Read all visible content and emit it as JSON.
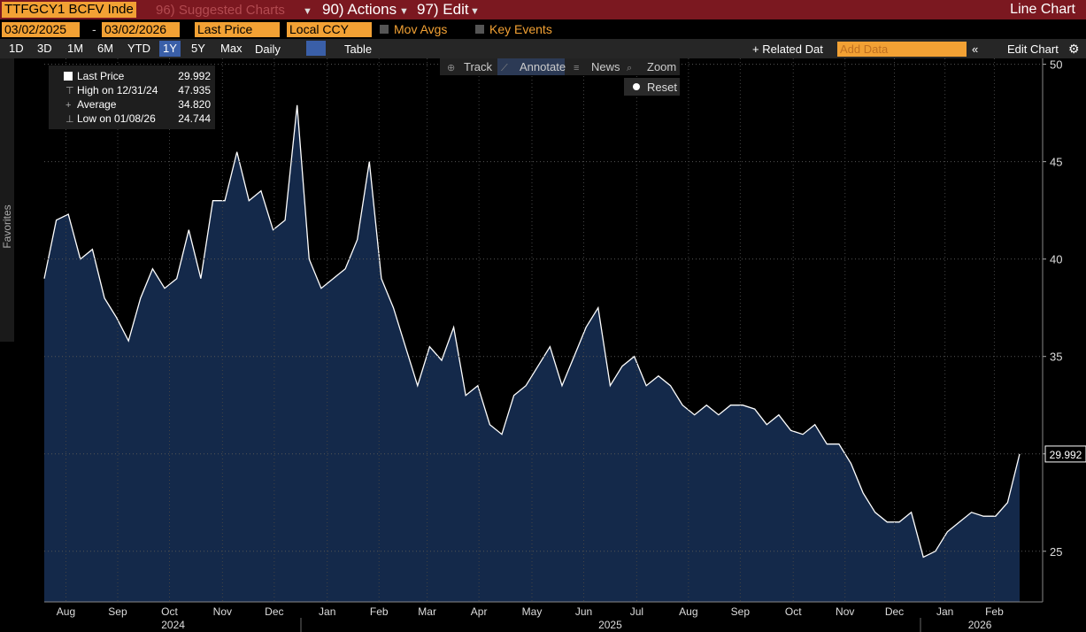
{
  "header": {
    "ticker": "TTFGCY1 BCFV Inde",
    "menus": [
      "96) Suggested Charts",
      "90) Actions",
      "97) Edit"
    ],
    "view": "Line Chart"
  },
  "controls": {
    "start_date": "03/02/2025",
    "end_date": "03/02/2026",
    "field": "Last Price",
    "currency": "Local CCY",
    "options": [
      "Mov Avgs",
      "Key Events"
    ]
  },
  "periods": [
    "1D",
    "3D",
    "1M",
    "6M",
    "YTD",
    "1Y",
    "5Y",
    "Max"
  ],
  "selected_period": 5,
  "frequency": "Daily",
  "table": "Table",
  "related": "+ Related Dat",
  "add_data": "Add Data",
  "edit_chart": "Edit Chart",
  "chart_tools": [
    "Track",
    "Annotate",
    "News",
    "Zoom"
  ],
  "reset": "Reset",
  "favorites": "Favorites",
  "chart_data": {
    "type": "line",
    "series": [
      {
        "name": "Last Price",
        "color": "#ffffff",
        "fill": "#14294a",
        "values": [
          39,
          42,
          42.3,
          40,
          40.5,
          38,
          37,
          35.8,
          38,
          39.5,
          38.5,
          39,
          41.5,
          39,
          43,
          43,
          45.5,
          43,
          43.5,
          41.5,
          42,
          47.9,
          40,
          38.5,
          39,
          39.5,
          41,
          45,
          39,
          37.5,
          35.5,
          33.5,
          35.5,
          34.8,
          36.5,
          33,
          33.5,
          31.5,
          31,
          33,
          33.5,
          34.5,
          35.5,
          33.5,
          35,
          36.5,
          37.5,
          33.5,
          34.5,
          35,
          33.5,
          34,
          33.5,
          32.5,
          32,
          32.5,
          32,
          32.5,
          32.5,
          32.3,
          31.5,
          32,
          31.2,
          31,
          31.5,
          30.5,
          30.5,
          29.5,
          28,
          27,
          26.5,
          26.5,
          27,
          24.7,
          25,
          26,
          26.5,
          27,
          26.8,
          26.8,
          27.5,
          29.992
        ]
      }
    ],
    "legend": [
      {
        "label": "Last Price",
        "value": 29.992
      },
      {
        "label": "High on 12/31/24",
        "value": 47.935
      },
      {
        "label": "Average",
        "value": 34.82,
        "value_label": "34.820"
      },
      {
        "label": "Low on 01/08/26",
        "value": 24.744
      }
    ],
    "xlim": [
      0,
      81
    ],
    "xticks": [
      {
        "value": 1.8,
        "label": "Aug"
      },
      {
        "value": 6.1,
        "label": "Sep"
      },
      {
        "value": 10.4,
        "label": "Oct"
      },
      {
        "value": 14.8,
        "label": "Nov"
      },
      {
        "value": 19.1,
        "label": "Dec"
      },
      {
        "value": 23.5,
        "label": "Jan"
      },
      {
        "value": 27.8,
        "label": "Feb"
      },
      {
        "value": 31.8,
        "label": "Mar"
      },
      {
        "value": 36.1,
        "label": "Apr"
      },
      {
        "value": 40.5,
        "label": "May"
      },
      {
        "value": 44.8,
        "label": "Jun"
      },
      {
        "value": 49.2,
        "label": "Jul"
      },
      {
        "value": 53.5,
        "label": "Aug"
      },
      {
        "value": 57.8,
        "label": "Sep"
      },
      {
        "value": 62.2,
        "label": "Oct"
      },
      {
        "value": 66.5,
        "label": "Nov"
      },
      {
        "value": 70.6,
        "label": "Dec"
      },
      {
        "value": 74.8,
        "label": "Jan"
      },
      {
        "value": 78.9,
        "label": "Feb"
      }
    ],
    "year_labels": [
      {
        "value": 10.7,
        "label": "2024"
      },
      {
        "value": 47,
        "label": "2025"
      },
      {
        "value": 77.7,
        "label": "2026"
      }
    ],
    "ylim": [
      22.4,
      50.3
    ],
    "yticks": [
      25,
      30,
      35,
      40,
      45,
      50
    ],
    "grid": true
  }
}
